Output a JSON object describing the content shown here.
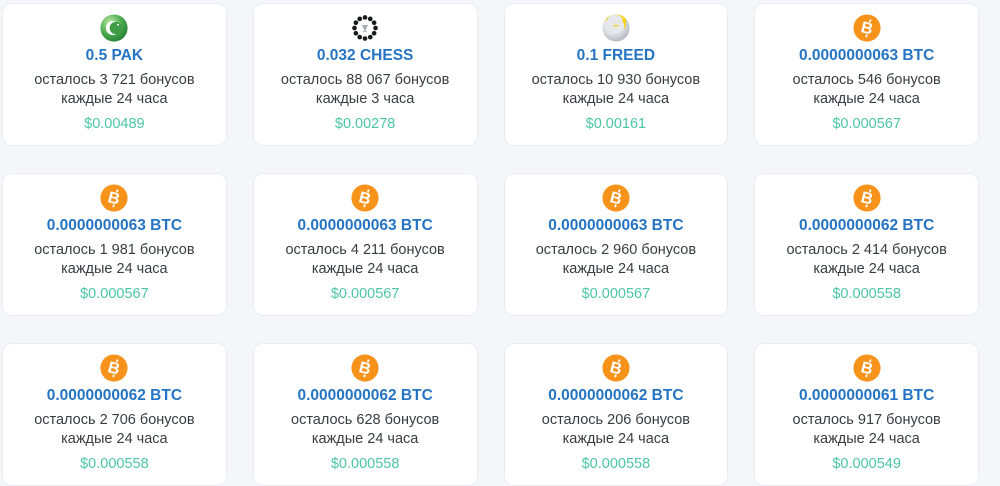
{
  "page": {
    "language": "ru",
    "background_color": "#f4f6fa",
    "title_color": "#2574c4",
    "text_color": "#383d42",
    "price_color": "#4cc6a2",
    "btc_orange": "#f7931a"
  },
  "cards": [
    {
      "icon": "pak-coin-icon",
      "title": "0.5 PAK",
      "remaining": "осталось 3 721 бонусов",
      "interval": "каждые 24 часа",
      "price": "$0.00489"
    },
    {
      "icon": "chess-coin-icon",
      "title": "0.032 CHESS",
      "remaining": "осталось 88 067 бонусов",
      "interval": "каждые 3 часа",
      "price": "$0.00278"
    },
    {
      "icon": "freed-coin-icon",
      "title": "0.1 FREED",
      "remaining": "осталось 10 930 бонусов",
      "interval": "каждые 24 часа",
      "price": "$0.00161"
    },
    {
      "icon": "btc-coin-icon",
      "title": "0.0000000063 BTC",
      "remaining": "осталось 546 бонусов",
      "interval": "каждые 24 часа",
      "price": "$0.000567"
    },
    {
      "icon": "btc-coin-icon",
      "title": "0.0000000063 BTC",
      "remaining": "осталось 1 981 бонусов",
      "interval": "каждые 24 часа",
      "price": "$0.000567"
    },
    {
      "icon": "btc-coin-icon",
      "title": "0.0000000063 BTC",
      "remaining": "осталось 4 211 бонусов",
      "interval": "каждые 24 часа",
      "price": "$0.000567"
    },
    {
      "icon": "btc-coin-icon",
      "title": "0.0000000063 BTC",
      "remaining": "осталось 2 960 бонусов",
      "interval": "каждые 24 часа",
      "price": "$0.000567"
    },
    {
      "icon": "btc-coin-icon",
      "title": "0.0000000062 BTC",
      "remaining": "осталось 2 414 бонусов",
      "interval": "каждые 24 часа",
      "price": "$0.000558"
    },
    {
      "icon": "btc-coin-icon",
      "title": "0.0000000062 BTC",
      "remaining": "осталось 2 706 бонусов",
      "interval": "каждые 24 часа",
      "price": "$0.000558"
    },
    {
      "icon": "btc-coin-icon",
      "title": "0.0000000062 BTC",
      "remaining": "осталось 628 бонусов",
      "interval": "каждые 24 часа",
      "price": "$0.000558"
    },
    {
      "icon": "btc-coin-icon",
      "title": "0.0000000062 BTC",
      "remaining": "осталось 206 бонусов",
      "interval": "каждые 24 часа",
      "price": "$0.000558"
    },
    {
      "icon": "btc-coin-icon",
      "title": "0.0000000061 BTC",
      "remaining": "осталось 917 бонусов",
      "interval": "каждые 24 часа",
      "price": "$0.000549"
    }
  ]
}
